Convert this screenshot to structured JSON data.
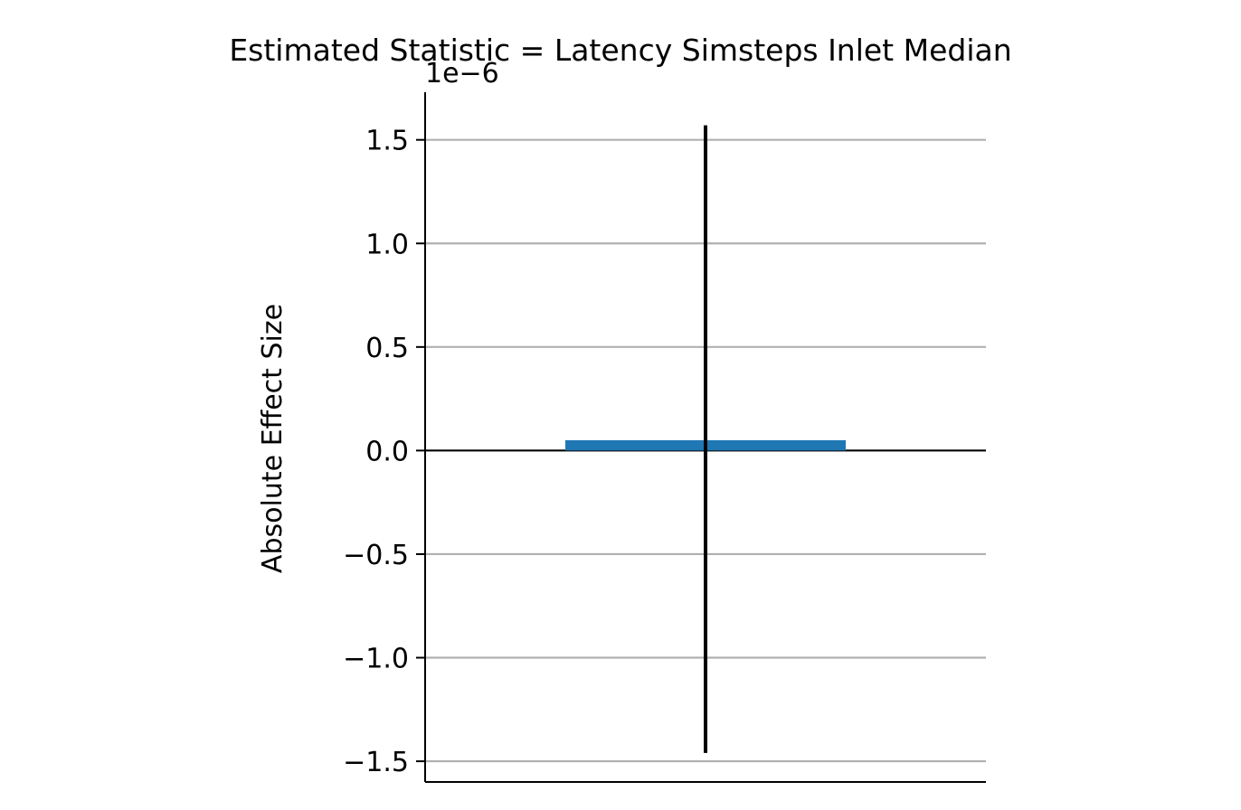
{
  "chart_data": {
    "type": "bar",
    "title": "Estimated Statistic = Latency Simsteps Inlet Median",
    "xlabel": "",
    "ylabel": "Absolute Effect Size",
    "offset_text": "1e−6",
    "scale": 1e-06,
    "categories": [
      ""
    ],
    "values": [
      5e-08
    ],
    "error_bars": [
      {
        "low": -1.46e-06,
        "high": 1.57e-06
      }
    ],
    "ylim": [
      -1.6e-06,
      1.73e-06
    ],
    "yticks": [
      -1.5e-06,
      -1e-06,
      -5e-07,
      0.0,
      5e-07,
      1e-06,
      1.5e-06
    ],
    "ytick_labels": [
      "−1.5",
      "−1.0",
      "−0.5",
      "0.0",
      "0.5",
      "1.0",
      "1.5"
    ],
    "zero_line": true,
    "grid": "y",
    "legend": "none",
    "colors": {
      "bar": "#1f77b4",
      "error_bar": "#000000",
      "grid": "#b0b0b0",
      "axis": "#000000",
      "zero_line": "#000000"
    }
  }
}
